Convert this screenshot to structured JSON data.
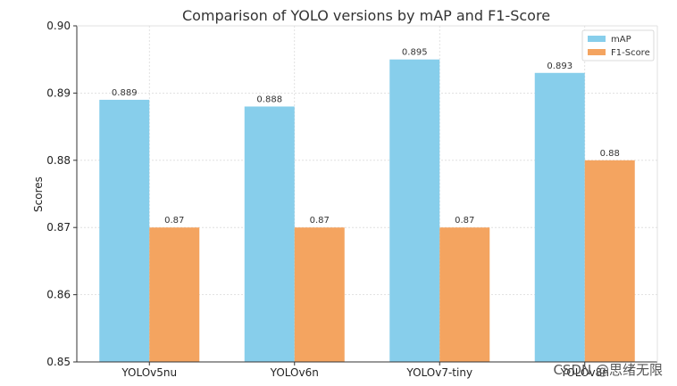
{
  "chart_data": {
    "type": "bar",
    "title": "Comparison of YOLO versions by mAP and F1-Score",
    "xlabel": "",
    "ylabel": "Scores",
    "categories": [
      "YOLOv5nu",
      "YOLOv6n",
      "YOLOv7-tiny",
      "YOLOv8n"
    ],
    "series": [
      {
        "name": "mAP",
        "values": [
          0.889,
          0.888,
          0.895,
          0.893
        ],
        "labels": [
          "0.889",
          "0.888",
          "0.895",
          "0.893"
        ],
        "color": "#87CEEB"
      },
      {
        "name": "F1-Score",
        "values": [
          0.87,
          0.87,
          0.87,
          0.88
        ],
        "labels": [
          "0.87",
          "0.87",
          "0.87",
          "0.88"
        ],
        "color": "#F4A460"
      }
    ],
    "ylim": [
      0.85,
      0.9
    ],
    "yticks": [
      0.85,
      0.86,
      0.87,
      0.88,
      0.89,
      0.9
    ],
    "ytick_labels": [
      "0.85",
      "0.86",
      "0.87",
      "0.88",
      "0.89",
      "0.90"
    ],
    "grid": true,
    "legend_position": "top-right"
  },
  "watermark": "CSDN @思绪无限"
}
